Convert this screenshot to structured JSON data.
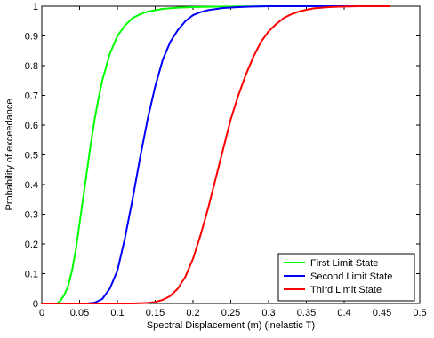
{
  "chart_data": {
    "type": "line",
    "title": "",
    "xlabel": "Spectral Displacement (m) (inelastic T)",
    "ylabel": "Probability of exceedance",
    "xlim": [
      0,
      0.5
    ],
    "ylim": [
      0,
      1
    ],
    "xticks": [
      "0",
      "0.05",
      "0.1",
      "0.15",
      "0.2",
      "0.25",
      "0.3",
      "0.35",
      "0.4",
      "0.45",
      "0.5"
    ],
    "yticks": [
      "0",
      "0.1",
      "0.2",
      "0.3",
      "0.4",
      "0.5",
      "0.6",
      "0.7",
      "0.8",
      "0.9",
      "1"
    ],
    "grid": false,
    "legend_position": "bottom-right",
    "x": [
      0.02,
      0.04,
      0.06,
      0.08,
      0.1,
      0.12,
      0.14,
      0.16,
      0.18,
      0.2,
      0.22,
      0.24,
      0.26,
      0.28,
      0.3,
      0.32,
      0.34,
      0.36,
      0.38,
      0.4,
      0.42,
      0.44,
      0.46
    ],
    "series": [
      {
        "name": "First Limit State",
        "color": "#00ff00",
        "x": [
          0.02,
          0.025,
          0.03,
          0.035,
          0.04,
          0.045,
          0.05,
          0.055,
          0.06,
          0.065,
          0.07,
          0.075,
          0.08,
          0.09,
          0.1,
          0.11,
          0.12,
          0.13,
          0.14,
          0.16,
          0.18,
          0.2,
          0.22,
          0.25,
          0.3,
          0.35,
          0.4,
          0.46
        ],
        "values": [
          0.0,
          0.01,
          0.03,
          0.06,
          0.11,
          0.18,
          0.27,
          0.36,
          0.45,
          0.54,
          0.62,
          0.69,
          0.75,
          0.84,
          0.9,
          0.935,
          0.96,
          0.973,
          0.982,
          0.991,
          0.995,
          0.997,
          0.998,
          0.999,
          1.0,
          1.0,
          1.0,
          1.0
        ]
      },
      {
        "name": "Second Limit State",
        "color": "#0000ff",
        "x": [
          0.06,
          0.07,
          0.08,
          0.09,
          0.1,
          0.11,
          0.12,
          0.13,
          0.14,
          0.15,
          0.16,
          0.17,
          0.18,
          0.19,
          0.2,
          0.21,
          0.22,
          0.24,
          0.26,
          0.28,
          0.3,
          0.33,
          0.36,
          0.4,
          0.46
        ],
        "values": [
          0.0,
          0.003,
          0.015,
          0.05,
          0.11,
          0.22,
          0.35,
          0.49,
          0.62,
          0.73,
          0.82,
          0.88,
          0.92,
          0.95,
          0.97,
          0.98,
          0.987,
          0.994,
          0.997,
          0.999,
          1.0,
          1.0,
          1.0,
          1.0,
          1.0
        ]
      },
      {
        "name": "Third Limit State",
        "color": "#ff0000",
        "x": [
          0.0,
          0.05,
          0.1,
          0.12,
          0.14,
          0.15,
          0.16,
          0.17,
          0.18,
          0.19,
          0.2,
          0.21,
          0.22,
          0.23,
          0.24,
          0.25,
          0.26,
          0.27,
          0.28,
          0.29,
          0.3,
          0.31,
          0.32,
          0.33,
          0.34,
          0.35,
          0.36,
          0.38,
          0.4,
          0.42,
          0.46
        ],
        "values": [
          0.0,
          0.0,
          0.0,
          0.0,
          0.002,
          0.005,
          0.012,
          0.025,
          0.05,
          0.09,
          0.15,
          0.23,
          0.32,
          0.42,
          0.52,
          0.62,
          0.7,
          0.77,
          0.83,
          0.88,
          0.915,
          0.94,
          0.96,
          0.973,
          0.982,
          0.988,
          0.993,
          0.997,
          0.999,
          1.0,
          1.0
        ]
      }
    ]
  }
}
